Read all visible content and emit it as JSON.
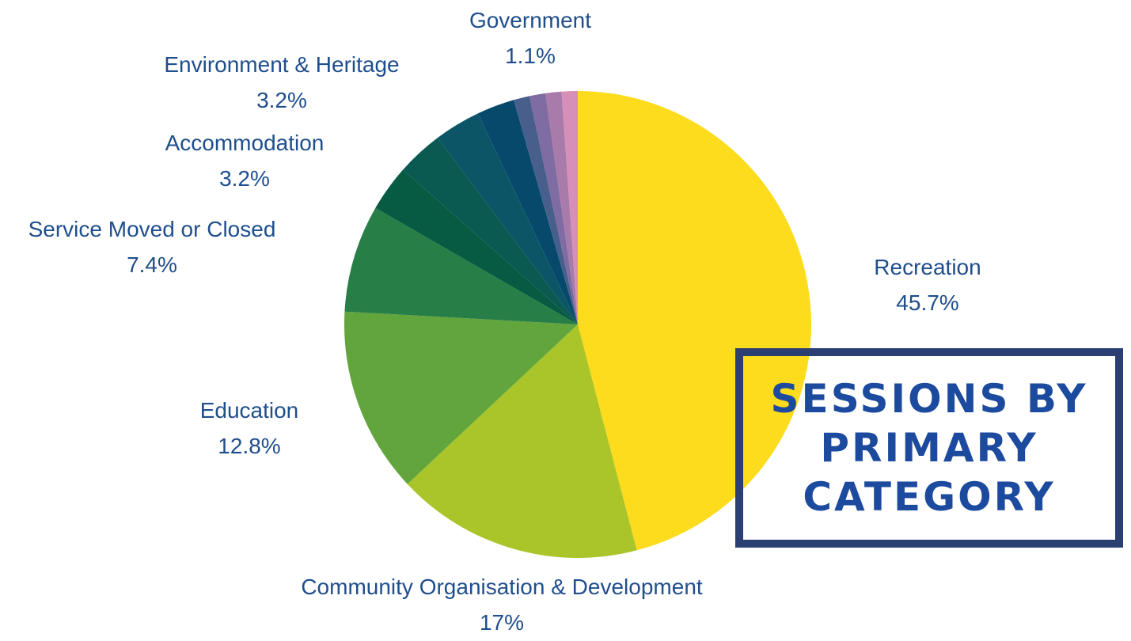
{
  "chart_data": {
    "type": "pie",
    "title_lines": [
      "SESSIONS BY",
      "PRIMARY",
      "CATEGORY"
    ],
    "slices": [
      {
        "name": "Recreation",
        "value_label": "45.7%",
        "value": 45.7,
        "color": "#fcdc1c"
      },
      {
        "name": "Community Organisation & Development",
        "value_label": "17%",
        "value": 17,
        "color": "#a9c52a"
      },
      {
        "name": "Education",
        "value_label": "12.8%",
        "value": 12.8,
        "color": "#62a53d"
      },
      {
        "name": "Service Moved or Closed",
        "value_label": "7.4%",
        "value": 7.4,
        "color": "#287e47"
      },
      {
        "name": "",
        "value_label": "",
        "value": 3.2,
        "color": "#075b42"
      },
      {
        "name": "Accommodation",
        "value_label": "3.2%",
        "value": 3.2,
        "color": "#0b5a52"
      },
      {
        "name": "Environment & Heritage",
        "value_label": "3.2%",
        "value": 3.2,
        "color": "#0c5567"
      },
      {
        "name": "",
        "value_label": "",
        "value": 2.6,
        "color": "#06496b"
      },
      {
        "name": "",
        "value_label": "",
        "value": 1.1,
        "color": "#485f8c"
      },
      {
        "name": "",
        "value_label": "",
        "value": 1.1,
        "color": "#7e6ca2"
      },
      {
        "name": "",
        "value_label": "",
        "value": 1.1,
        "color": "#a97bab"
      },
      {
        "name": "Government",
        "value_label": "1.1%",
        "value": 1.1,
        "color": "#d68fb8"
      }
    ]
  }
}
